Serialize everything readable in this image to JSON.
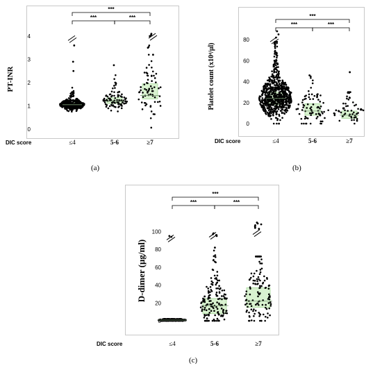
{
  "figure": {
    "captions": [
      "(a)",
      "(b)",
      "(c)"
    ]
  },
  "colors": {
    "box_fill": "#d9f2d0",
    "box_stroke": "#a6d99a",
    "dots": "#000000",
    "frame": "#c8c8c8"
  },
  "chart_data": [
    {
      "type": "scatter",
      "title": "",
      "xlabel": "DIC score",
      "ylabel": "PT-INR",
      "categories": [
        "≤4",
        "5-6",
        "≥7"
      ],
      "yticks": [
        "0",
        "1",
        "2",
        "3",
        "4"
      ],
      "ylim": [
        0,
        4.3
      ],
      "medians": [
        1.05,
        1.2,
        1.45
      ],
      "q1": [
        1.0,
        1.1,
        1.3
      ],
      "q3": [
        1.15,
        1.35,
        1.95
      ],
      "axis_break": true,
      "significance": [
        {
          "from": "≤4",
          "to": "5-6",
          "label": "***"
        },
        {
          "from": "5-6",
          "to": "≥7",
          "label": "***"
        },
        {
          "from": "≤4",
          "to": "≥7",
          "label": "***"
        }
      ]
    },
    {
      "type": "scatter",
      "title": "",
      "xlabel": "DIC score",
      "ylabel": "Platelet count (x10⁴/μl)",
      "categories": [
        "≤4",
        "5-6",
        "≥7"
      ],
      "yticks": [
        "0",
        "20",
        "40",
        "60",
        "80"
      ],
      "ylim": [
        0,
        90
      ],
      "medians": [
        24,
        12,
        8
      ],
      "q1": [
        18,
        8,
        5
      ],
      "q3": [
        30,
        19,
        12
      ],
      "axis_break": true,
      "significance": [
        {
          "from": "≤4",
          "to": "5-6",
          "label": "***"
        },
        {
          "from": "5-6",
          "to": "≥7",
          "label": "***"
        },
        {
          "from": "≤4",
          "to": "≥7",
          "label": "***"
        }
      ]
    },
    {
      "type": "scatter",
      "title": "",
      "xlabel": "DIC score",
      "ylabel": "D-dimer (μg/ml)",
      "categories": [
        "≤4",
        "5-6",
        "≥7"
      ],
      "yticks": [
        "0",
        "20",
        "40",
        "60",
        "80",
        "100"
      ],
      "ylim": [
        0,
        112
      ],
      "medians": [
        0.8,
        17,
        22
      ],
      "q1": [
        0.3,
        8,
        15
      ],
      "q3": [
        1.2,
        25,
        37
      ],
      "axis_break": true,
      "significance": [
        {
          "from": "≤4",
          "to": "5-6",
          "label": "***"
        },
        {
          "from": "5-6",
          "to": "≥7",
          "label": "***"
        },
        {
          "from": "≤4",
          "to": "≥7",
          "label": "***"
        }
      ]
    }
  ]
}
